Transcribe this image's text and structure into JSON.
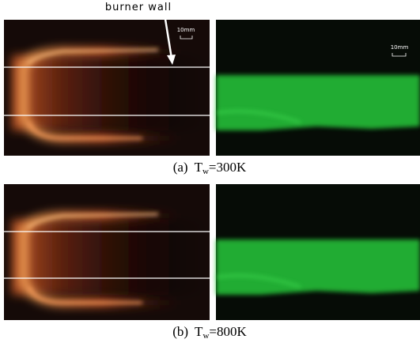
{
  "annotation": {
    "label": "burner wall"
  },
  "panels": [
    {
      "scale_labels": [
        "10mm",
        "10mm"
      ],
      "caption": {
        "tag": "(a)",
        "symbol": "T",
        "subscript": "w",
        "value": "=300K"
      }
    },
    {
      "caption": {
        "tag": "(b)",
        "symbol": "T",
        "subscript": "w",
        "value": "=800K"
      }
    }
  ]
}
